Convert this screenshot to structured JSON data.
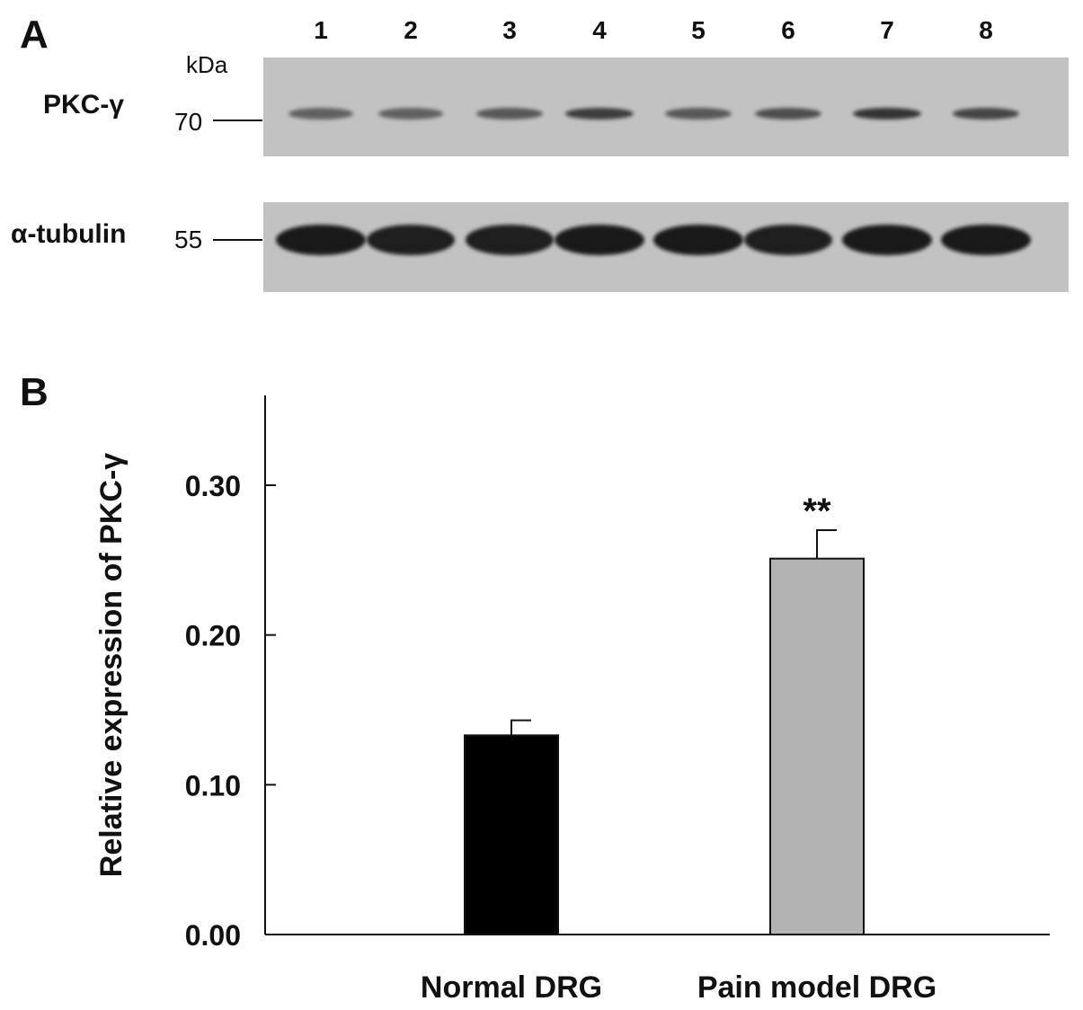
{
  "panel_a": {
    "label": "A",
    "lanes": [
      "1",
      "2",
      "3",
      "4",
      "5",
      "6",
      "7",
      "8"
    ],
    "kda_label": "kDa",
    "blots": [
      {
        "protein": "PKC-γ",
        "mw": "70",
        "band_intensity": [
          0.55,
          0.55,
          0.6,
          0.75,
          0.6,
          0.65,
          0.8,
          0.7
        ]
      },
      {
        "protein": "α-tubulin",
        "mw": "55",
        "band_intensity": [
          0.95,
          0.92,
          0.92,
          0.95,
          0.95,
          0.92,
          0.95,
          0.95
        ]
      }
    ],
    "colors": {
      "membrane": "#c2c2c2",
      "band": "#111111"
    }
  },
  "panel_b": {
    "label": "B"
  },
  "chart_data": {
    "type": "bar",
    "categories": [
      "Normal DRG",
      "Pain model DRG"
    ],
    "values": [
      0.133,
      0.251
    ],
    "errors": [
      0.01,
      0.019
    ],
    "colors": [
      "#000000",
      "#b3b3b3"
    ],
    "annotations": [
      "",
      "**"
    ],
    "title": "",
    "xlabel": "",
    "ylabel": "Relative expression of PKC-γ",
    "yticks": [
      "0.00",
      "0.10",
      "0.20",
      "0.30"
    ],
    "ylim": [
      0,
      0.36
    ],
    "grid": false
  }
}
